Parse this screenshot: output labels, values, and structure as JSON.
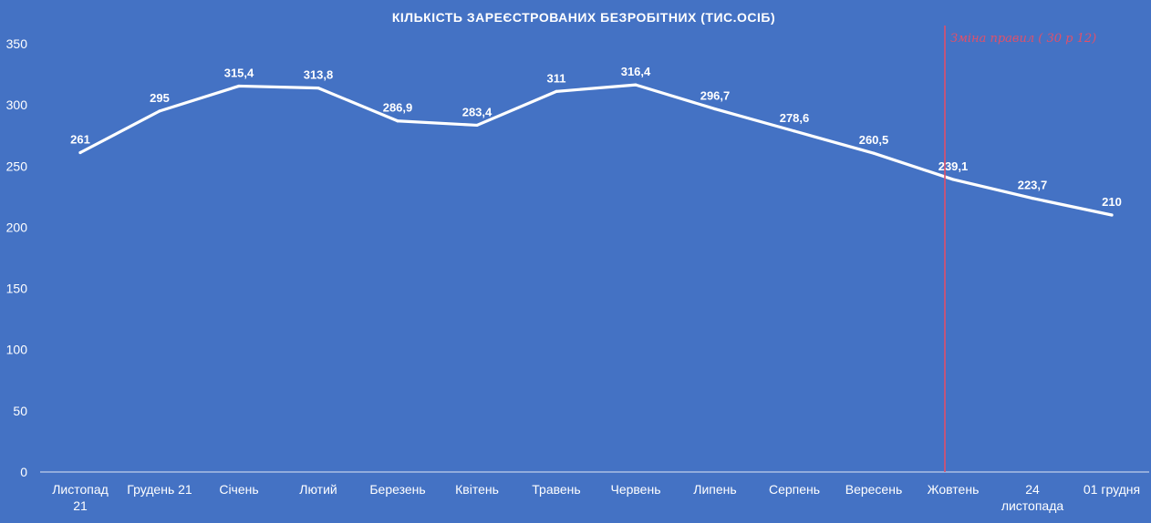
{
  "chart_data": {
    "type": "line",
    "title": "КІЛЬКІСТЬ ЗАРЕЄСТРОВАНИХ БЕЗРОБІТНИХ (ТИС.ОСІБ)",
    "categories": [
      [
        "Листопад",
        "21"
      ],
      [
        "Грудень 21"
      ],
      [
        "Січень"
      ],
      [
        "Лютий"
      ],
      [
        "Березень"
      ],
      [
        "Квітень"
      ],
      [
        "Травень"
      ],
      [
        "Червень"
      ],
      [
        "Липень"
      ],
      [
        "Серпень"
      ],
      [
        "Вересень"
      ],
      [
        "Жовтень"
      ],
      [
        "24",
        "листопада"
      ],
      [
        "01 грудня"
      ]
    ],
    "values": [
      261,
      295,
      315.4,
      313.8,
      286.9,
      283.4,
      311,
      316.4,
      296.7,
      278.6,
      260.5,
      239.1,
      223.7,
      210
    ],
    "data_labels": [
      "261",
      "295",
      "315,4",
      "313,8",
      "286,9",
      "283,4",
      "311",
      "316,4",
      "296,7",
      "278,6",
      "260,5",
      "239,1",
      "223,7",
      "210"
    ],
    "yticks": [
      0,
      50,
      100,
      150,
      200,
      250,
      300,
      350
    ],
    "ylim": [
      0,
      350
    ],
    "xlabel": "",
    "ylabel": "",
    "grid": false,
    "drop_lines": true,
    "marker_line": {
      "after_category": "Жовтень",
      "annotation": "Зміна правил ( 30 р 12)",
      "color": "#e0506a"
    },
    "colors": {
      "background": "#4472c4",
      "line": "#ffffff",
      "text": "#ffffff"
    }
  }
}
